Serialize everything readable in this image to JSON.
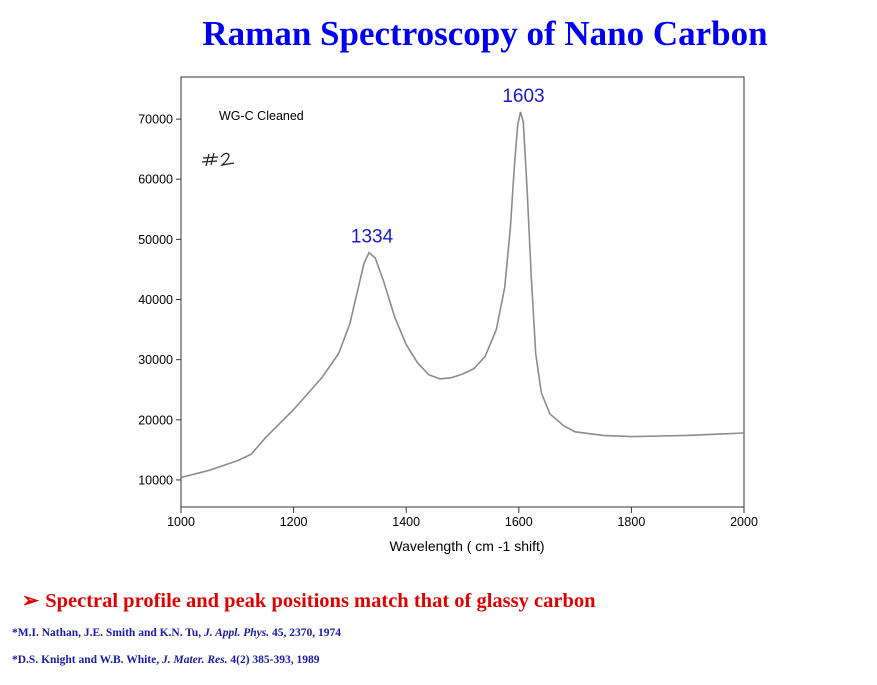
{
  "slide": {
    "title": "Raman Spectroscopy of Nano Carbon",
    "bullet_arrow": "➢",
    "bullet": "Spectral profile and peak positions match that of glassy carbon",
    "references": [
      {
        "authors": "*M.I. Nathan, J.E. Smith and K.N. Tu,",
        "journal": "J. Appl. Phys.",
        "details": "45, 2370, 1974"
      },
      {
        "authors": "*D.S. Knight and W.B. White,",
        "journal": "J. Mater. Res.",
        "details": "4(2) 385-393, 1989"
      }
    ]
  },
  "chart_data": {
    "type": "line",
    "sample_label": "WG-C Cleaned",
    "handwritten_note": "#2",
    "xlabel": "Wavelength ( cm -1 shift)",
    "ylabel": "",
    "xlim": [
      1000,
      2000
    ],
    "ylim": [
      5500,
      77000
    ],
    "x_ticks": [
      1000,
      1200,
      1400,
      1600,
      1800,
      2000
    ],
    "y_ticks": [
      10000,
      20000,
      30000,
      40000,
      50000,
      60000,
      70000
    ],
    "grid": false,
    "line_color": "#8c8c8c",
    "peak_annotations": [
      {
        "label": "1334",
        "x": 1334,
        "y": 47800
      },
      {
        "label": "1603",
        "x": 1603,
        "y": 71200
      }
    ],
    "series": [
      {
        "points": [
          [
            1000,
            10400
          ],
          [
            1050,
            11600
          ],
          [
            1100,
            13200
          ],
          [
            1125,
            14300
          ],
          [
            1150,
            17000
          ],
          [
            1200,
            21700
          ],
          [
            1250,
            27000
          ],
          [
            1280,
            31000
          ],
          [
            1300,
            36000
          ],
          [
            1315,
            42000
          ],
          [
            1325,
            46000
          ],
          [
            1334,
            47800
          ],
          [
            1345,
            46900
          ],
          [
            1360,
            43000
          ],
          [
            1380,
            37000
          ],
          [
            1400,
            32500
          ],
          [
            1420,
            29500
          ],
          [
            1440,
            27500
          ],
          [
            1460,
            26800
          ],
          [
            1480,
            27000
          ],
          [
            1500,
            27600
          ],
          [
            1520,
            28500
          ],
          [
            1540,
            30500
          ],
          [
            1560,
            35000
          ],
          [
            1575,
            42000
          ],
          [
            1585,
            52000
          ],
          [
            1592,
            62000
          ],
          [
            1598,
            69000
          ],
          [
            1603,
            71200
          ],
          [
            1608,
            69500
          ],
          [
            1615,
            58000
          ],
          [
            1622,
            44000
          ],
          [
            1630,
            31000
          ],
          [
            1640,
            24500
          ],
          [
            1655,
            21000
          ],
          [
            1680,
            19000
          ],
          [
            1700,
            18000
          ],
          [
            1750,
            17400
          ],
          [
            1800,
            17200
          ],
          [
            1850,
            17300
          ],
          [
            1900,
            17400
          ],
          [
            1950,
            17600
          ],
          [
            2000,
            17800
          ]
        ]
      }
    ]
  }
}
